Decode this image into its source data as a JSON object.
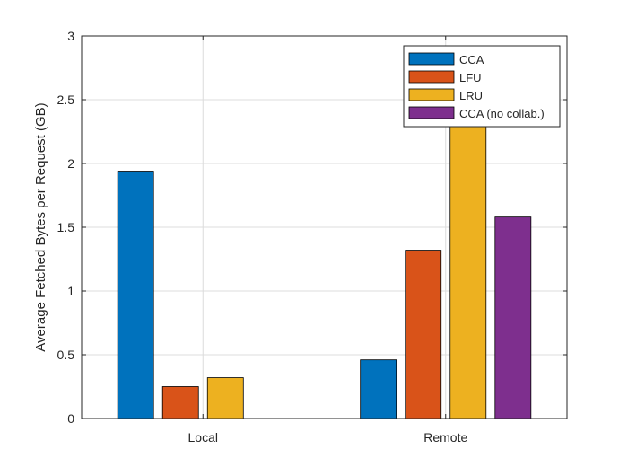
{
  "chart_data": {
    "type": "bar",
    "categories": [
      "Local",
      "Remote"
    ],
    "series": [
      {
        "name": "CCA",
        "color": "#0072BD",
        "values": [
          1.94,
          0.46
        ]
      },
      {
        "name": "LFU",
        "color": "#D95319",
        "values": [
          0.25,
          1.32
        ]
      },
      {
        "name": "LRU",
        "color": "#EDB120",
        "values": [
          0.32,
          2.4
        ]
      },
      {
        "name": "CCA (no collab.)",
        "color": "#7E2F8E",
        "values": [
          null,
          1.58
        ]
      }
    ],
    "xlabel": "",
    "ylabel": "Average Fetched Bytes per Request (GB)",
    "ylim": [
      0,
      3
    ],
    "yticks": [
      0,
      0.5,
      1,
      1.5,
      2,
      2.5,
      3
    ],
    "ytick_labels": [
      "0",
      "0.5",
      "1",
      "1.5",
      "2",
      "2.5",
      "3"
    ],
    "grid": true,
    "legend_position": "top-right"
  }
}
